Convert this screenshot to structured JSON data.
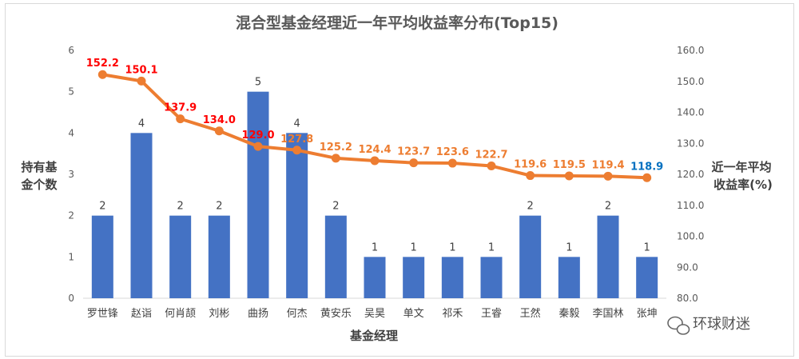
{
  "chart_data": {
    "type": "bar+line",
    "title": "混合型基金经理近一年平均收益率分布(Top15)",
    "xlabel": "基金经理",
    "ylabel_left": [
      "持有基",
      "金个数"
    ],
    "ylabel_right": [
      "近一年平均",
      "收益率(%)"
    ],
    "categories": [
      "罗世锋",
      "赵诣",
      "何肖颉",
      "刘彬",
      "曲扬",
      "何杰",
      "黄安乐",
      "吴昊",
      "单文",
      "祁禾",
      "王睿",
      "王然",
      "秦毅",
      "李国林",
      "张坤"
    ],
    "series": [
      {
        "name": "持有基金个数",
        "type": "bar",
        "axis": "left",
        "color": "#4472c4",
        "values": [
          2,
          4,
          2,
          2,
          5,
          4,
          2,
          1,
          1,
          1,
          1,
          2,
          1,
          2,
          1
        ],
        "labels": [
          "2",
          "4",
          "2",
          "2",
          "5",
          "4",
          "2",
          "1",
          "1",
          "1",
          "1",
          "2",
          "1",
          "2",
          "1"
        ]
      },
      {
        "name": "近一年平均收益率(%)",
        "type": "line",
        "axis": "right",
        "color": "#ed7d31",
        "values": [
          152.2,
          150.1,
          137.9,
          134.0,
          129.0,
          127.8,
          125.2,
          124.4,
          123.7,
          123.6,
          122.7,
          119.6,
          119.5,
          119.4,
          118.9
        ],
        "labels": [
          "152.2",
          "150.1",
          "137.9",
          "134.0",
          "129.0",
          "127.8",
          "125.2",
          "124.4",
          "123.7",
          "123.6",
          "122.7",
          "119.6",
          "119.5",
          "119.4",
          "118.9"
        ],
        "label_colors": [
          "#ff0000",
          "#ff0000",
          "#ff0000",
          "#ff0000",
          "#ff0000",
          "#ed7d31",
          "#ed7d31",
          "#ed7d31",
          "#ed7d31",
          "#ed7d31",
          "#ed7d31",
          "#ed7d31",
          "#ed7d31",
          "#ed7d31",
          "#0070c0"
        ]
      }
    ],
    "ylim_left": [
      0,
      6
    ],
    "yticks_left": [
      "0",
      "1",
      "2",
      "3",
      "4",
      "5",
      "6"
    ],
    "ylim_right": [
      80,
      160
    ],
    "yticks_right": [
      "80.0",
      "90.0",
      "100.0",
      "110.0",
      "120.0",
      "130.0",
      "140.0",
      "150.0",
      "160.0"
    ],
    "grid": false,
    "legend": "none"
  },
  "watermark": "环球财迷"
}
